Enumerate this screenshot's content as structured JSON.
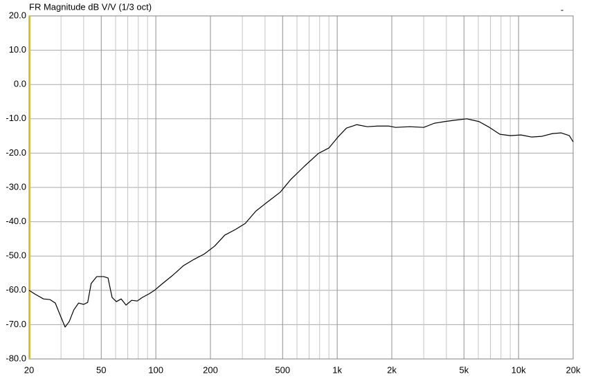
{
  "chart_data": {
    "type": "line",
    "title": "FR Magnitude dB V/V (1/3 oct)",
    "corner_mark": "-",
    "log_x": true,
    "grid": true,
    "color": "#000000",
    "x": [
      20,
      21.4,
      24,
      26.1,
      27.9,
      29.6,
      31.6,
      33.3,
      35.3,
      37.5,
      40,
      42.1,
      44,
      47.2,
      51.6,
      54.5,
      57.4,
      60.6,
      64.4,
      68.5,
      73.6,
      79,
      84,
      91.9,
      98.3,
      109,
      124,
      142,
      162,
      185,
      211,
      240,
      274,
      311,
      356,
      423,
      485,
      552,
      660,
      787,
      900,
      1010,
      1125,
      1282,
      1466,
      1674,
      1917,
      2097,
      2510,
      2999,
      3428,
      3917,
      4477,
      5180,
      6050,
      6910,
      7890,
      9010,
      10300,
      11780,
      13450,
      15380,
      17190,
      19040,
      20000
    ],
    "values": [
      -60,
      -61,
      -62.5,
      -62.7,
      -63.7,
      -67.1,
      -70.7,
      -69.1,
      -65.7,
      -63.7,
      -64.1,
      -63.5,
      -58,
      -56,
      -56,
      -56.4,
      -62.1,
      -63.3,
      -62.5,
      -64.3,
      -62.9,
      -63.1,
      -62.1,
      -61,
      -60,
      -58,
      -55.6,
      -52.8,
      -51,
      -49.4,
      -47.1,
      -43.9,
      -42.3,
      -40.5,
      -36.9,
      -33.8,
      -31.4,
      -27.8,
      -23.8,
      -20.1,
      -18.5,
      -15.3,
      -12.7,
      -11.7,
      -12.3,
      -12.1,
      -12.1,
      -12.5,
      -12.3,
      -12.5,
      -11.3,
      -10.8,
      -10.4,
      -10,
      -10.8,
      -12.5,
      -14.5,
      -14.9,
      -14.7,
      -15.3,
      -15.1,
      -14.3,
      -14.1,
      -14.9,
      -16.7
    ],
    "xlim": [
      20,
      20000
    ],
    "ylim": [
      -80,
      20
    ],
    "xticks": [
      20,
      50,
      100,
      200,
      500,
      {
        "value": 1000,
        "label": "1k"
      },
      {
        "value": 2000,
        "label": "2k"
      },
      {
        "value": 5000,
        "label": "5k"
      },
      {
        "value": 10000,
        "label": "10k"
      },
      {
        "value": 20000,
        "label": "20k"
      }
    ],
    "xminorticks": [
      30,
      40,
      60,
      70,
      80,
      90,
      300,
      400,
      600,
      700,
      800,
      900,
      3000,
      4000,
      6000,
      7000,
      8000,
      9000
    ],
    "yticks": [
      {
        "value": 20,
        "label": "20.0"
      },
      {
        "value": 10,
        "label": "10.0"
      },
      {
        "value": 0,
        "label": "0.0"
      },
      {
        "value": -10,
        "label": "-10.0"
      },
      {
        "value": -20,
        "label": "-20.0"
      },
      {
        "value": -30,
        "label": "-30.0"
      },
      {
        "value": -40,
        "label": "-40.0"
      },
      {
        "value": -50,
        "label": "-50.0"
      },
      {
        "value": -60,
        "label": "-60.0"
      },
      {
        "value": -70,
        "label": "-70.0"
      },
      {
        "value": -80,
        "label": "-80.0"
      }
    ]
  }
}
